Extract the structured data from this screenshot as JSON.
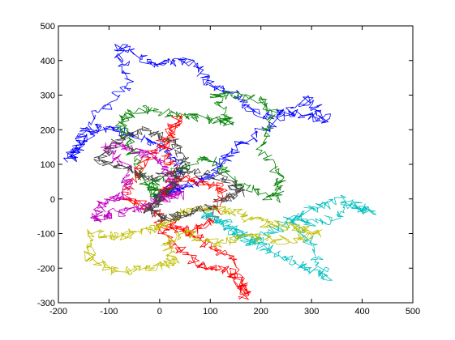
{
  "chart_data": {
    "type": "line",
    "title": "",
    "xlabel": "",
    "ylabel": "",
    "xlim": [
      -200,
      500
    ],
    "ylim": [
      -300,
      500
    ],
    "xticks": [
      -200,
      -100,
      0,
      100,
      200,
      300,
      400,
      500
    ],
    "yticks": [
      -300,
      -200,
      -100,
      0,
      100,
      200,
      300,
      400,
      500
    ],
    "grid": false,
    "legend": "none",
    "series": [
      {
        "color": "#0000ff",
        "values": [
          [
            0,
            0
          ],
          [
            40,
            80
          ],
          [
            10,
            150
          ],
          [
            -60,
            190
          ],
          [
            -120,
            210
          ],
          [
            -160,
            150
          ],
          [
            -180,
            110
          ],
          [
            -140,
            220
          ],
          [
            -60,
            330
          ],
          [
            -80,
            440
          ],
          [
            -10,
            390
          ],
          [
            60,
            400
          ],
          [
            100,
            330
          ],
          [
            150,
            300
          ],
          [
            200,
            240
          ],
          [
            260,
            250
          ],
          [
            330,
            230
          ],
          [
            290,
            290
          ],
          [
            210,
            200
          ],
          [
            150,
            150
          ],
          [
            110,
            80
          ],
          [
            60,
            40
          ],
          [
            20,
            20
          ],
          [
            0,
            0
          ]
        ]
      },
      {
        "color": "#008000",
        "values": [
          [
            0,
            0
          ],
          [
            -40,
            80
          ],
          [
            -60,
            160
          ],
          [
            -80,
            230
          ],
          [
            -30,
            260
          ],
          [
            40,
            240
          ],
          [
            100,
            230
          ],
          [
            140,
            220
          ],
          [
            110,
            300
          ],
          [
            170,
            300
          ],
          [
            230,
            260
          ],
          [
            200,
            150
          ],
          [
            240,
            60
          ],
          [
            230,
            0
          ],
          [
            160,
            40
          ],
          [
            100,
            120
          ],
          [
            40,
            90
          ],
          [
            -20,
            40
          ],
          [
            0,
            0
          ]
        ]
      },
      {
        "color": "#ff0000",
        "values": [
          [
            0,
            0
          ],
          [
            40,
            60
          ],
          [
            90,
            50
          ],
          [
            130,
            20
          ],
          [
            100,
            -60
          ],
          [
            60,
            -100
          ],
          [
            0,
            -70
          ],
          [
            30,
            -140
          ],
          [
            80,
            -190
          ],
          [
            130,
            -200
          ],
          [
            160,
            -250
          ],
          [
            170,
            -280
          ],
          [
            140,
            -170
          ],
          [
            90,
            -130
          ],
          [
            40,
            -80
          ],
          [
            -30,
            -20
          ],
          [
            -70,
            10
          ],
          [
            -40,
            90
          ],
          [
            10,
            170
          ],
          [
            40,
            240
          ],
          [
            10,
            150
          ],
          [
            30,
            60
          ],
          [
            0,
            0
          ]
        ]
      },
      {
        "color": "#00bfbf",
        "values": [
          [
            90,
            -40
          ],
          [
            140,
            -80
          ],
          [
            190,
            -120
          ],
          [
            230,
            -160
          ],
          [
            280,
            -190
          ],
          [
            330,
            -230
          ],
          [
            300,
            -130
          ],
          [
            250,
            -60
          ],
          [
            320,
            -70
          ],
          [
            380,
            -20
          ],
          [
            420,
            -40
          ],
          [
            360,
            0
          ],
          [
            300,
            -30
          ],
          [
            240,
            -80
          ],
          [
            180,
            -130
          ],
          [
            130,
            -80
          ],
          [
            90,
            -40
          ]
        ]
      },
      {
        "color": "#bfbf00",
        "values": [
          [
            60,
            -30
          ],
          [
            20,
            -70
          ],
          [
            -30,
            -90
          ],
          [
            -80,
            -110
          ],
          [
            -130,
            -100
          ],
          [
            -140,
            -170
          ],
          [
            -80,
            -210
          ],
          [
            -20,
            -200
          ],
          [
            30,
            -180
          ],
          [
            10,
            -120
          ],
          [
            60,
            -100
          ],
          [
            110,
            -130
          ],
          [
            170,
            -110
          ],
          [
            240,
            -120
          ],
          [
            320,
            -100
          ],
          [
            260,
            -80
          ],
          [
            200,
            -70
          ],
          [
            150,
            -40
          ],
          [
            100,
            -30
          ],
          [
            60,
            -30
          ]
        ]
      },
      {
        "color": "#bf00bf",
        "values": [
          [
            0,
            0
          ],
          [
            -40,
            -30
          ],
          [
            -90,
            -40
          ],
          [
            -130,
            -60
          ],
          [
            -110,
            -10
          ],
          [
            -70,
            10
          ],
          [
            -60,
            80
          ],
          [
            -110,
            150
          ],
          [
            -60,
            150
          ],
          [
            -10,
            120
          ],
          [
            20,
            60
          ],
          [
            40,
            10
          ],
          [
            0,
            0
          ]
        ]
      },
      {
        "color": "#404040",
        "values": [
          [
            0,
            0
          ],
          [
            30,
            40
          ],
          [
            50,
            110
          ],
          [
            20,
            170
          ],
          [
            -30,
            200
          ],
          [
            -80,
            170
          ],
          [
            -120,
            110
          ],
          [
            -70,
            90
          ],
          [
            -20,
            60
          ],
          [
            60,
            80
          ],
          [
            130,
            60
          ],
          [
            160,
            20
          ],
          [
            120,
            -10
          ],
          [
            60,
            -40
          ],
          [
            10,
            -60
          ],
          [
            -20,
            -30
          ],
          [
            0,
            0
          ]
        ]
      }
    ]
  }
}
